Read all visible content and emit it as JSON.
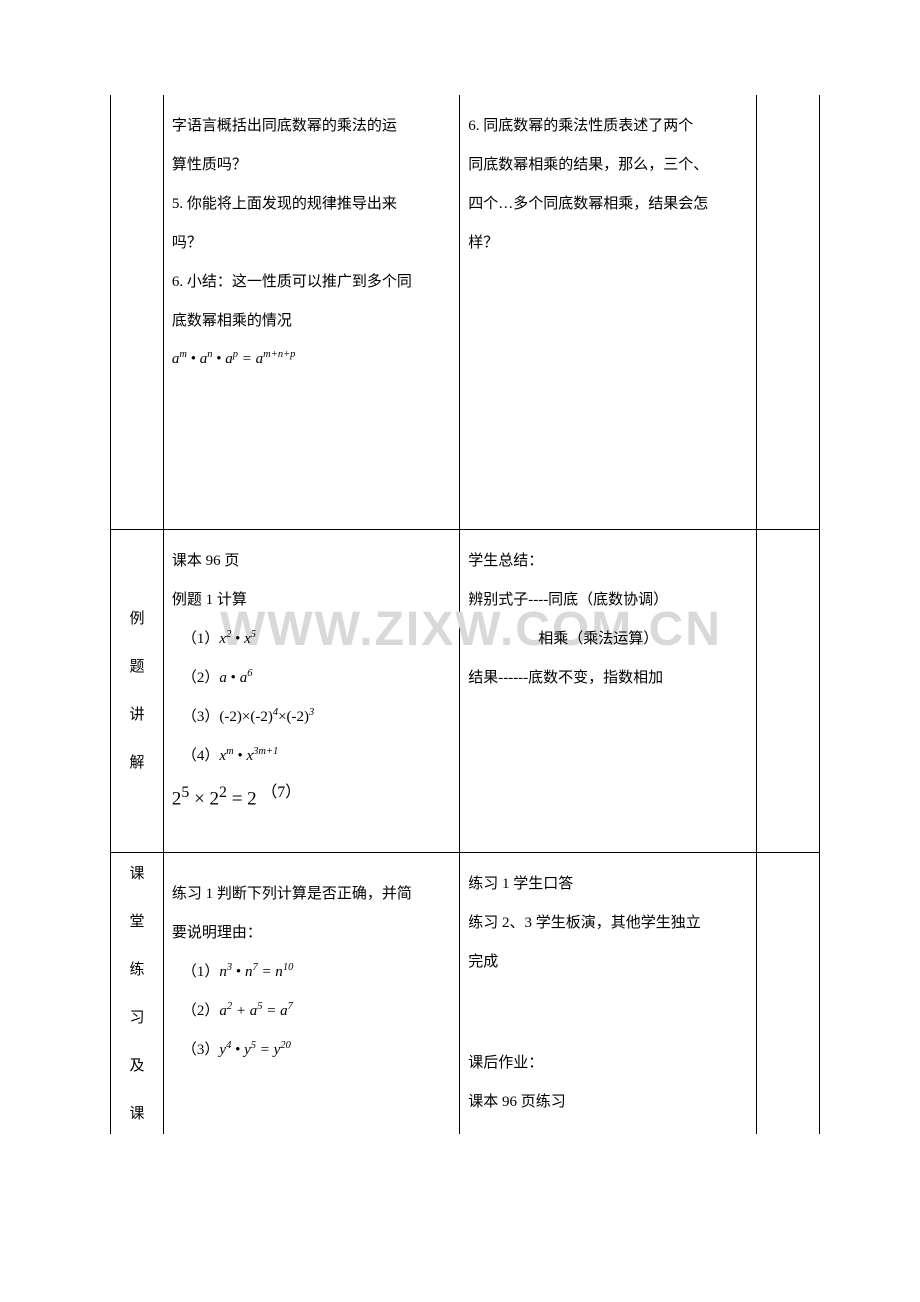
{
  "watermark": "WWW.ZIXW.COM.CN",
  "row1": {
    "col2_lines": [
      "字语言概括出同底数幂的乘法的运",
      "算性质吗？",
      "5. 你能将上面发现的规律推导出来",
      "吗？",
      "6. 小结：这一性质可以推广到多个同",
      "底数幂相乘的情况"
    ],
    "col2_formula_html": "a<span class='sup'>m</span> <span class='dot'>•</span> a<span class='sup'>n</span> <span class='dot'>•</span> a<span class='sup'>p</span> = a<span class='sup'>m+n+p</span>",
    "col3_lines": [
      "6. 同底数幂的乘法性质表述了两个",
      "同底数幂相乘的结果，那么，三个、",
      "四个…多个同底数幂相乘，结果会怎",
      "样？"
    ]
  },
  "row2": {
    "col1_chars": [
      "例",
      "题",
      "讲",
      "解"
    ],
    "col2_lines": [
      "课本 96 页",
      "例题 1 计算"
    ],
    "col2_items": [
      "（1）<span class='math'>x<span class='sup'>2</span> <span class='dot'>•</span> x<span class='sup'>5</span></span>",
      "（2）<span class='math'>a <span class='dot'>•</span> a<span class='sup'>6</span></span>",
      "（3）(-2)×(-2)<span class='sup'>4</span>×(-2)<span class='sup'>3</span>",
      "（4）<span class='math'>x<span class='sup'>m</span> <span class='dot'>•</span> x<span class='sup'>3m+1</span></span>"
    ],
    "col2_bigeq": "2<sup>5</sup> × 2<sup>2</sup> = 2 <sup>（7）</sup>",
    "col3_lines": [
      "学生总结：",
      "辨别式子----同底（底数协调）"
    ],
    "col3_line_indent": "相乘（乘法运算）",
    "col3_line_last": "结果------底数不变，指数相加"
  },
  "row3": {
    "col1_chars": [
      "课",
      "堂",
      "练",
      "习",
      "及",
      "课"
    ],
    "col2_lines": [
      "练习 1 判断下列计算是否正确，并简",
      "要说明理由："
    ],
    "col2_items": [
      "（1）<span class='math'>n<span class='sup'>3</span> <span class='dot'>•</span> n<span class='sup'>7</span> = n<span class='sup'>10</span></span>",
      "（2）<span class='math'>a<span class='sup'>2</span> + a<span class='sup'>5</span> = a<span class='sup'>7</span></span>",
      "（3）<span class='math'>y<span class='sup'>4</span> <span class='dot'>•</span> y<span class='sup'>5</span> = y<span class='sup'>20</span></span>"
    ],
    "col3_lines": [
      "练习 1 学生口答",
      "练习 2、3 学生板演，其他学生独立",
      "完成"
    ],
    "col3_after_gap": [
      "课后作业：",
      "课本 96 页练习"
    ]
  }
}
